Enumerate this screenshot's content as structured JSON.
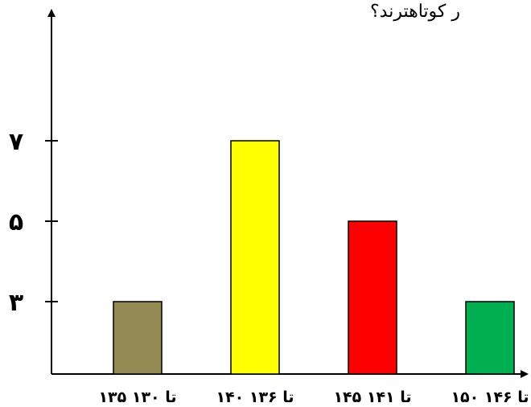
{
  "question": "ر کوتاهترند؟",
  "chart_data": {
    "type": "bar",
    "categories": [
      "۱۳۵ تا ۱۳۰",
      "۱۴۰ تا ۱۳۶",
      "۱۴۵ تا ۱۴۱",
      "۱۵۰ تا ۱۴۶"
    ],
    "values": [
      3,
      7,
      5,
      3
    ],
    "colors": [
      "#948a54",
      "#ffff00",
      "#ff0000",
      "#00b050"
    ],
    "ytick_values": [
      3,
      5,
      7
    ],
    "ytick_labels": [
      "۳",
      "۵",
      "۷"
    ],
    "ylim": [
      1.2,
      10.2
    ],
    "title": "",
    "xlabel": "",
    "ylabel": "",
    "grid": false,
    "legend": "none"
  }
}
